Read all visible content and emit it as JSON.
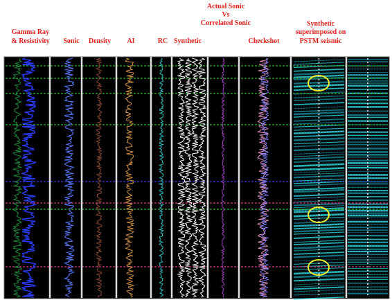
{
  "column_headers": [
    [
      "Gamma Ray",
      "& Resistivity"
    ],
    [
      "Sonic"
    ],
    [
      "Density"
    ],
    [
      "AI"
    ],
    [
      "RC"
    ],
    [
      "Synthetic"
    ],
    [
      "Actual Sonic",
      "Vs",
      "Correlated Sonic"
    ],
    [
      "Checkshot"
    ],
    [
      "Synthetic",
      "superimposed on",
      "PSTM seismic"
    ]
  ]
}
